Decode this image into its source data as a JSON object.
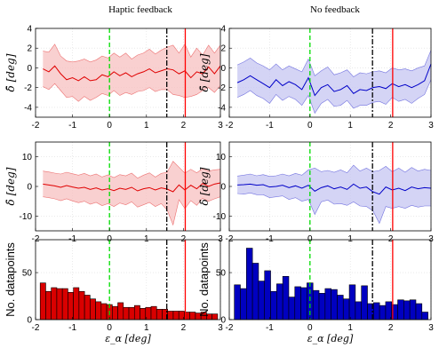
{
  "columns": [
    {
      "title": "Haptic feedback",
      "line_color": "#e00000",
      "band_color": "#f7c0c0",
      "bar_color": "#d90000"
    },
    {
      "title": "No feedback",
      "line_color": "#0000c8",
      "band_color": "#c6c6f2",
      "bar_color": "#0000c0"
    }
  ],
  "rows": [
    {
      "ylabel": "δ̄ [deg]",
      "yticks": [
        -4,
        -2,
        0,
        2,
        4
      ],
      "ylim": [
        -5,
        4
      ]
    },
    {
      "ylabel": "δ̇ [deg]",
      "yticks": [
        -10,
        0,
        10
      ],
      "ylim": [
        -15,
        15
      ]
    },
    {
      "ylabel": "No. datapoints",
      "yticks": [
        0,
        50
      ],
      "ylim": [
        0,
        85
      ]
    }
  ],
  "xlabel": "ε_α [deg]",
  "xticks": [
    -2,
    -1,
    0,
    1,
    2,
    3
  ],
  "xlim": [
    -2,
    3
  ],
  "vlines": [
    {
      "x": 0.0,
      "color": "#00dd00",
      "style": "dash"
    },
    {
      "x": 1.55,
      "color": "#000000",
      "style": "dashdot"
    },
    {
      "x": 2.05,
      "color": "#ff0000",
      "style": "solid"
    }
  ],
  "chart_data": [
    {
      "type": "line",
      "panel": "Haptic feedback - mean deviation",
      "x": [
        -1.8,
        -1.64,
        -1.48,
        -1.32,
        -1.16,
        -1.0,
        -0.84,
        -0.68,
        -0.52,
        -0.36,
        -0.2,
        -0.04,
        0.12,
        0.28,
        0.44,
        0.6,
        0.76,
        0.92,
        1.08,
        1.24,
        1.4,
        1.56,
        1.72,
        1.88,
        2.04,
        2.2,
        2.36,
        2.52,
        2.68,
        2.84,
        3.0
      ],
      "mean": [
        -0.1,
        -0.4,
        0.2,
        -0.6,
        -1.2,
        -1.0,
        -1.3,
        -0.9,
        -1.3,
        -1.2,
        -0.7,
        -0.9,
        -0.4,
        -0.8,
        -0.5,
        -0.9,
        -0.6,
        -0.4,
        -0.1,
        -0.5,
        -0.3,
        -0.1,
        -0.2,
        -0.6,
        -0.3,
        -1.0,
        -0.4,
        -0.6,
        0.1,
        -0.6,
        0.2
      ],
      "lower": [
        -1.9,
        -2.2,
        -1.6,
        -2.3,
        -3.0,
        -2.9,
        -3.4,
        -2.9,
        -3.3,
        -3.0,
        -2.6,
        -2.8,
        -2.3,
        -2.8,
        -2.5,
        -2.7,
        -2.4,
        -2.3,
        -2.0,
        -2.4,
        -2.2,
        -2.2,
        -2.7,
        -2.8,
        -3.0,
        -2.9,
        -2.7,
        -2.3,
        -2.0,
        -2.5,
        -1.8
      ],
      "upper": [
        1.7,
        1.6,
        2.4,
        1.2,
        0.7,
        0.6,
        0.7,
        0.9,
        0.6,
        0.8,
        1.2,
        1.0,
        1.5,
        1.1,
        1.5,
        0.9,
        1.3,
        1.5,
        1.9,
        1.4,
        1.8,
        2.1,
        2.3,
        1.5,
        2.4,
        1.1,
        2.0,
        1.3,
        2.3,
        1.5,
        2.3
      ],
      "ylim": [
        -5,
        4
      ]
    },
    {
      "type": "line",
      "panel": "No feedback - mean deviation",
      "x": [
        -1.8,
        -1.64,
        -1.48,
        -1.32,
        -1.16,
        -1.0,
        -0.84,
        -0.68,
        -0.52,
        -0.36,
        -0.2,
        -0.04,
        0.12,
        0.28,
        0.44,
        0.6,
        0.76,
        0.92,
        1.08,
        1.24,
        1.4,
        1.56,
        1.72,
        1.88,
        2.04,
        2.2,
        2.36,
        2.52,
        2.68,
        2.84,
        3.0
      ],
      "mean": [
        -1.5,
        -1.2,
        -0.8,
        -1.2,
        -1.6,
        -2.0,
        -1.2,
        -1.8,
        -1.4,
        -1.7,
        -2.2,
        -1.0,
        -2.8,
        -2.0,
        -1.7,
        -2.4,
        -2.2,
        -1.8,
        -2.6,
        -2.2,
        -2.3,
        -2.0,
        -1.9,
        -2.1,
        -1.6,
        -1.9,
        -1.7,
        -2.0,
        -1.7,
        -1.3,
        0.4
      ],
      "lower": [
        -3.0,
        -2.7,
        -2.3,
        -2.8,
        -3.1,
        -3.6,
        -2.7,
        -3.3,
        -2.9,
        -3.2,
        -3.8,
        -2.8,
        -4.6,
        -3.6,
        -3.2,
        -3.9,
        -3.8,
        -3.3,
        -4.1,
        -3.8,
        -3.8,
        -3.5,
        -3.4,
        -3.7,
        -3.0,
        -3.4,
        -3.2,
        -3.6,
        -3.1,
        -2.7,
        -1.2
      ],
      "upper": [
        0.3,
        0.6,
        1.0,
        0.5,
        0.2,
        -0.2,
        0.4,
        -0.2,
        0.2,
        -0.1,
        -0.4,
        0.9,
        -0.8,
        -0.3,
        0.1,
        -0.7,
        -0.5,
        -0.2,
        -0.9,
        -0.5,
        -0.6,
        -0.4,
        -0.3,
        -0.5,
        0.0,
        -0.2,
        -0.1,
        -0.3,
        0.0,
        0.2,
        1.8
      ],
      "ylim": [
        -5,
        4
      ]
    },
    {
      "type": "line",
      "panel": "Haptic feedback - deviation rate",
      "x": [
        -1.8,
        -1.64,
        -1.48,
        -1.32,
        -1.16,
        -1.0,
        -0.84,
        -0.68,
        -0.52,
        -0.36,
        -0.2,
        -0.04,
        0.12,
        0.28,
        0.44,
        0.6,
        0.76,
        0.92,
        1.08,
        1.24,
        1.4,
        1.56,
        1.72,
        1.88,
        2.04,
        2.2,
        2.36,
        2.52,
        2.68,
        2.84,
        3.0
      ],
      "mean": [
        0.8,
        0.5,
        0.2,
        -0.3,
        0.3,
        -0.2,
        -0.6,
        -0.3,
        -1.0,
        -0.5,
        -1.2,
        -0.8,
        -1.4,
        -0.6,
        -1.0,
        -0.3,
        -1.5,
        -0.8,
        -0.4,
        -1.2,
        -0.5,
        -0.9,
        -1.8,
        0.5,
        -1.2,
        0.4,
        -0.8,
        1.0,
        0.0,
        0.8,
        1.2
      ],
      "lower": [
        -3.5,
        -3.8,
        -4.2,
        -4.8,
        -4.2,
        -4.9,
        -5.5,
        -5.0,
        -6.0,
        -5.4,
        -6.5,
        -5.8,
        -6.8,
        -5.6,
        -6.2,
        -5.2,
        -7.0,
        -6.2,
        -5.4,
        -6.8,
        -5.8,
        -8.0,
        -13.0,
        -4.5,
        -7.5,
        -4.8,
        -6.4,
        -4.0,
        -5.0,
        -4.2,
        -3.5
      ],
      "upper": [
        5.2,
        4.9,
        4.5,
        4.2,
        4.8,
        4.3,
        3.8,
        4.4,
        3.6,
        4.2,
        3.2,
        3.9,
        3.0,
        4.0,
        3.6,
        4.5,
        2.8,
        3.8,
        4.6,
        3.2,
        4.4,
        4.8,
        8.5,
        6.5,
        4.5,
        5.8,
        4.6,
        6.0,
        5.2,
        5.6,
        5.8
      ],
      "ylim": [
        -15,
        15
      ]
    },
    {
      "type": "line",
      "panel": "No feedback - deviation rate",
      "x": [
        -1.8,
        -1.64,
        -1.48,
        -1.32,
        -1.16,
        -1.0,
        -0.84,
        -0.68,
        -0.52,
        -0.36,
        -0.2,
        -0.04,
        0.12,
        0.28,
        0.44,
        0.6,
        0.76,
        0.92,
        1.08,
        1.24,
        1.4,
        1.56,
        1.72,
        1.88,
        2.04,
        2.2,
        2.36,
        2.52,
        2.68,
        2.84,
        3.0
      ],
      "mean": [
        0.5,
        0.6,
        0.8,
        0.4,
        0.6,
        -0.2,
        0.0,
        0.4,
        -0.4,
        0.2,
        -0.6,
        0.4,
        -1.6,
        -0.4,
        0.2,
        -0.8,
        -0.2,
        -1.0,
        0.8,
        -0.6,
        -0.2,
        -1.8,
        -2.6,
        -0.2,
        -1.2,
        -0.6,
        -1.4,
        -0.2,
        -0.8,
        -0.4,
        -0.6
      ],
      "lower": [
        -2.4,
        -2.6,
        -2.2,
        -2.8,
        -2.8,
        -3.8,
        -3.5,
        -3.2,
        -4.4,
        -3.8,
        -5.0,
        -4.4,
        -9.5,
        -5.2,
        -4.6,
        -6.0,
        -5.8,
        -6.4,
        -5.2,
        -6.6,
        -6.8,
        -8.2,
        -12.5,
        -6.8,
        -7.4,
        -6.8,
        -7.4,
        -6.4,
        -7.0,
        -6.6,
        -6.6
      ],
      "upper": [
        3.5,
        3.8,
        4.2,
        3.6,
        4.0,
        3.4,
        3.6,
        4.2,
        3.6,
        4.4,
        3.8,
        5.6,
        6.2,
        5.0,
        5.4,
        4.8,
        5.6,
        4.6,
        7.2,
        5.2,
        6.2,
        5.0,
        5.4,
        6.8,
        5.0,
        6.2,
        4.8,
        6.4,
        5.2,
        5.8,
        5.4
      ],
      "ylim": [
        -15,
        15
      ]
    },
    {
      "type": "bar",
      "panel": "Haptic feedback - No. datapoints",
      "x": [
        -1.8,
        -1.65,
        -1.5,
        -1.35,
        -1.2,
        -1.05,
        -0.9,
        -0.75,
        -0.6,
        -0.45,
        -0.3,
        -0.15,
        0.0,
        0.15,
        0.3,
        0.45,
        0.6,
        0.75,
        0.9,
        1.05,
        1.2,
        1.35,
        1.5,
        1.65,
        1.8,
        1.95,
        2.1,
        2.25,
        2.4,
        2.55,
        2.7,
        2.85
      ],
      "values": [
        39,
        30,
        34,
        33,
        33,
        29,
        34,
        30,
        26,
        22,
        19,
        17,
        16,
        14,
        18,
        13,
        13,
        15,
        12,
        13,
        14,
        11,
        11,
        9,
        9,
        9,
        8,
        8,
        7,
        8,
        6,
        6
      ],
      "ylim": [
        0,
        85
      ]
    },
    {
      "type": "bar",
      "panel": "No feedback - No. datapoints",
      "x": [
        -1.8,
        -1.65,
        -1.5,
        -1.35,
        -1.2,
        -1.05,
        -0.9,
        -0.75,
        -0.6,
        -0.45,
        -0.3,
        -0.15,
        0.0,
        0.15,
        0.3,
        0.45,
        0.6,
        0.75,
        0.9,
        1.05,
        1.2,
        1.35,
        1.5,
        1.65,
        1.8,
        1.95,
        2.1,
        2.25,
        2.4,
        2.55,
        2.7,
        2.85
      ],
      "values": [
        37,
        33,
        76,
        60,
        41,
        52,
        30,
        38,
        46,
        24,
        35,
        34,
        39,
        31,
        28,
        33,
        32,
        26,
        22,
        37,
        19,
        36,
        17,
        18,
        15,
        19,
        16,
        21,
        20,
        21,
        17,
        8
      ],
      "ylim": [
        0,
        85
      ]
    }
  ]
}
